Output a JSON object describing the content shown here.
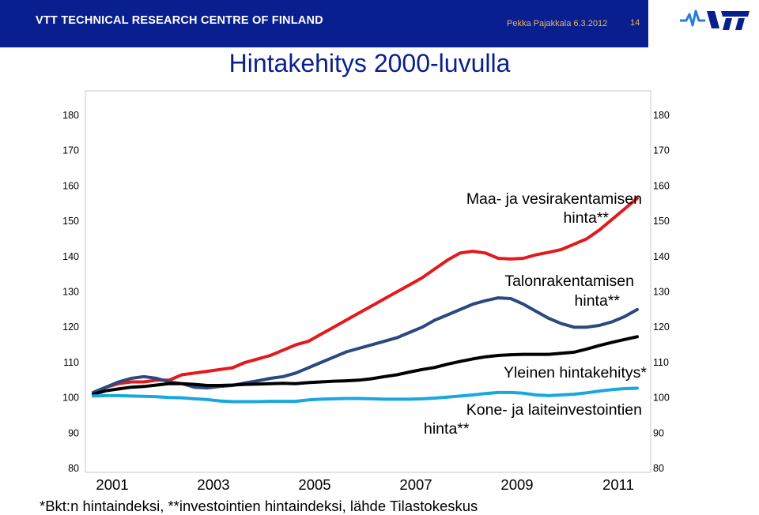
{
  "header": {
    "org": "VTT TECHNICAL RESEARCH CENTRE OF FINLAND",
    "author_date": "Pekka Pajakkala 6.3.2012",
    "page_number": "14",
    "logo_text": "VTT",
    "bar_color": "#0a1f8f",
    "meta_color": "#e9b84a"
  },
  "title": "Hintakehitys 2000-luvulla",
  "footnote": "*Bkt:n hintaindeksi, **investointien hintaindeksi, lähde Tilastokeskus",
  "chart_data": {
    "type": "line",
    "ylim": [
      80,
      180
    ],
    "yticks": [
      "180",
      "170",
      "160",
      "150",
      "140",
      "130",
      "120",
      "110",
      "100",
      "90",
      "80"
    ],
    "xlim": [
      2000.75,
      2012.25
    ],
    "xticks": [
      "2001",
      "2003",
      "2005",
      "2007",
      "2009",
      "2011"
    ],
    "grid": false,
    "annotations": {
      "maa_line1": "Maa- ja vesirakentamisen",
      "maa_line2": "hinta**",
      "talon_line1": "Talonrakentamisen",
      "talon_line2": "hinta**",
      "yleinen": "Yleinen hintakehitys*",
      "kone_line1": "Kone- ja laiteinvestointien",
      "kone_line2": "hinta**"
    },
    "series": [
      {
        "key": "maa",
        "color": "#e31a1c",
        "x": [
          2001.0,
          2001.25,
          2001.5,
          2001.75,
          2002.0,
          2002.25,
          2002.5,
          2002.75,
          2003.0,
          2003.25,
          2003.5,
          2003.75,
          2004.0,
          2004.25,
          2004.5,
          2004.75,
          2005.0,
          2005.25,
          2005.5,
          2005.75,
          2006.0,
          2006.25,
          2006.5,
          2006.75,
          2007.0,
          2007.25,
          2007.5,
          2007.75,
          2008.0,
          2008.25,
          2008.5,
          2008.75,
          2009.0,
          2009.25,
          2009.5,
          2009.75,
          2010.0,
          2010.25,
          2010.5,
          2010.75,
          2011.0,
          2011.25,
          2011.5,
          2011.75
        ],
        "values": [
          101.5,
          103,
          104,
          104.5,
          104.5,
          105,
          105,
          106.5,
          107,
          107.5,
          108,
          108.5,
          110,
          111,
          112,
          113.5,
          115,
          116,
          118,
          120,
          122,
          124,
          126,
          128,
          130,
          132,
          134,
          136.5,
          139,
          141,
          141.5,
          141,
          139.5,
          139.3,
          139.5,
          140.5,
          141.2,
          142,
          143.5,
          145,
          147.5,
          150.5,
          153.5,
          156.5
        ]
      },
      {
        "key": "talon",
        "color": "#2a4a7f",
        "x": [
          2001.0,
          2001.25,
          2001.5,
          2001.75,
          2002.0,
          2002.25,
          2002.5,
          2002.75,
          2003.0,
          2003.25,
          2003.5,
          2003.75,
          2004.0,
          2004.25,
          2004.5,
          2004.75,
          2005.0,
          2005.25,
          2005.5,
          2005.75,
          2006.0,
          2006.25,
          2006.5,
          2006.75,
          2007.0,
          2007.25,
          2007.5,
          2007.75,
          2008.0,
          2008.25,
          2008.5,
          2008.75,
          2009.0,
          2009.25,
          2009.5,
          2009.75,
          2010.0,
          2010.25,
          2010.5,
          2010.75,
          2011.0,
          2011.25,
          2011.5,
          2011.75
        ],
        "values": [
          101.5,
          103,
          104.5,
          105.5,
          106,
          105.5,
          104.5,
          104,
          103,
          102.8,
          103.2,
          103.5,
          104.2,
          104.8,
          105.5,
          106,
          107,
          108.5,
          110,
          111.5,
          113,
          114,
          115,
          116,
          117,
          118.5,
          120,
          122,
          123.5,
          125,
          126.5,
          127.5,
          128.3,
          128.1,
          126.5,
          124.5,
          122.5,
          121,
          120,
          120,
          120.5,
          121.5,
          123,
          125
        ]
      },
      {
        "key": "yleinen",
        "color": "#000000",
        "x": [
          2001.0,
          2001.25,
          2001.5,
          2001.75,
          2002.0,
          2002.25,
          2002.5,
          2002.75,
          2003.0,
          2003.25,
          2003.5,
          2003.75,
          2004.0,
          2004.25,
          2004.5,
          2004.75,
          2005.0,
          2005.25,
          2005.5,
          2005.75,
          2006.0,
          2006.25,
          2006.5,
          2006.75,
          2007.0,
          2007.25,
          2007.5,
          2007.75,
          2008.0,
          2008.25,
          2008.5,
          2008.75,
          2009.0,
          2009.25,
          2009.5,
          2009.75,
          2010.0,
          2010.25,
          2010.5,
          2010.75,
          2011.0,
          2011.25,
          2011.5,
          2011.75
        ],
        "values": [
          101,
          102,
          102.5,
          103,
          103.2,
          103.6,
          104,
          104,
          103.8,
          103.5,
          103.5,
          103.6,
          103.8,
          103.9,
          104,
          104.1,
          104,
          104.3,
          104.5,
          104.7,
          104.8,
          105,
          105.4,
          106,
          106.5,
          107.3,
          108,
          108.6,
          109.5,
          110.3,
          111,
          111.6,
          112,
          112.2,
          112.3,
          112.3,
          112.3,
          112.6,
          112.9,
          113.8,
          114.8,
          115.7,
          116.5,
          117.3
        ]
      },
      {
        "key": "kone",
        "color": "#19a7e0",
        "x": [
          2001.0,
          2001.25,
          2001.5,
          2001.75,
          2002.0,
          2002.25,
          2002.5,
          2002.75,
          2003.0,
          2003.25,
          2003.5,
          2003.75,
          2004.0,
          2004.25,
          2004.5,
          2004.75,
          2005.0,
          2005.25,
          2005.5,
          2005.75,
          2006.0,
          2006.25,
          2006.5,
          2006.75,
          2007.0,
          2007.25,
          2007.5,
          2007.75,
          2008.0,
          2008.25,
          2008.5,
          2008.75,
          2009.0,
          2009.25,
          2009.5,
          2009.75,
          2010.0,
          2010.25,
          2010.5,
          2010.75,
          2011.0,
          2011.25,
          2011.5,
          2011.75
        ],
        "values": [
          100.5,
          100.6,
          100.6,
          100.5,
          100.4,
          100.3,
          100.1,
          100,
          99.7,
          99.5,
          99.1,
          98.9,
          98.9,
          98.9,
          99,
          99,
          99,
          99.4,
          99.6,
          99.7,
          99.8,
          99.8,
          99.7,
          99.6,
          99.6,
          99.6,
          99.7,
          99.9,
          100.2,
          100.5,
          100.8,
          101.2,
          101.5,
          101.5,
          101.3,
          100.8,
          100.6,
          100.8,
          101,
          101.4,
          101.9,
          102.3,
          102.6,
          102.7
        ]
      }
    ]
  }
}
